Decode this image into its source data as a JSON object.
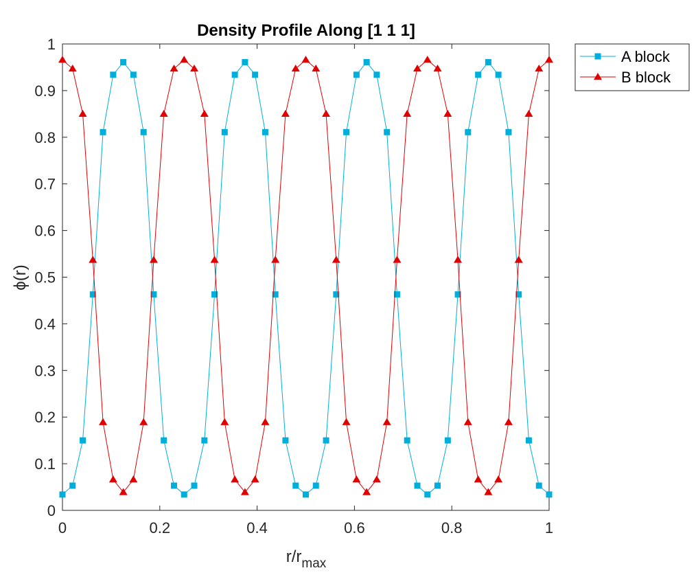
{
  "chart_data": {
    "type": "line",
    "title": "Density Profile Along [1 1 1]",
    "xlabel": "r/r",
    "xlabel_sub": "max",
    "ylabel": "ϕ(r)",
    "xlim": [
      0,
      1
    ],
    "ylim": [
      0,
      1
    ],
    "xticks": [
      0,
      0.2,
      0.4,
      0.6,
      0.8,
      1
    ],
    "xtick_labels": [
      "0",
      "0.2",
      "0.4",
      "0.6",
      "0.8",
      "1"
    ],
    "yticks": [
      0,
      0.1,
      0.2,
      0.3,
      0.4,
      0.5,
      0.6,
      0.7,
      0.8,
      0.9,
      1
    ],
    "ytick_labels": [
      "0",
      "0.1",
      "0.2",
      "0.3",
      "0.4",
      "0.5",
      "0.6",
      "0.7",
      "0.8",
      "0.9",
      "1"
    ],
    "grid": false,
    "legend_position": "outside top-right",
    "x": [
      0,
      0.0208,
      0.0417,
      0.0625,
      0.0833,
      0.1042,
      0.125,
      0.1458,
      0.1667,
      0.1875,
      0.2083,
      0.2292,
      0.25,
      0.2708,
      0.2917,
      0.3125,
      0.3333,
      0.3542,
      0.375,
      0.3958,
      0.4167,
      0.4375,
      0.4583,
      0.4792,
      0.5,
      0.5208,
      0.5417,
      0.5625,
      0.5833,
      0.6042,
      0.625,
      0.6458,
      0.6667,
      0.6875,
      0.7083,
      0.7292,
      0.75,
      0.7708,
      0.7917,
      0.8125,
      0.8333,
      0.8542,
      0.875,
      0.8958,
      0.9167,
      0.9375,
      0.9583,
      0.9792,
      1
    ],
    "series": [
      {
        "name": "A block",
        "color": "#00aedb",
        "marker": "square",
        "values": [
          0.034,
          0.053,
          0.15,
          0.463,
          0.811,
          0.934,
          0.961,
          0.934,
          0.811,
          0.463,
          0.15,
          0.053,
          0.034,
          0.053,
          0.15,
          0.463,
          0.811,
          0.934,
          0.961,
          0.934,
          0.811,
          0.463,
          0.15,
          0.053,
          0.034,
          0.053,
          0.15,
          0.463,
          0.811,
          0.934,
          0.961,
          0.934,
          0.811,
          0.463,
          0.15,
          0.053,
          0.034,
          0.053,
          0.15,
          0.463,
          0.811,
          0.934,
          0.961,
          0.934,
          0.811,
          0.463,
          0.15,
          0.053,
          0.034
        ]
      },
      {
        "name": "B block",
        "color": "#e00000",
        "marker": "triangle",
        "values": [
          0.966,
          0.947,
          0.85,
          0.537,
          0.189,
          0.066,
          0.039,
          0.066,
          0.189,
          0.537,
          0.85,
          0.947,
          0.966,
          0.947,
          0.85,
          0.537,
          0.189,
          0.066,
          0.039,
          0.066,
          0.189,
          0.537,
          0.85,
          0.947,
          0.966,
          0.947,
          0.85,
          0.537,
          0.189,
          0.066,
          0.039,
          0.066,
          0.189,
          0.537,
          0.85,
          0.947,
          0.966,
          0.947,
          0.85,
          0.537,
          0.189,
          0.066,
          0.039,
          0.066,
          0.189,
          0.537,
          0.85,
          0.947,
          0.966
        ]
      }
    ]
  }
}
